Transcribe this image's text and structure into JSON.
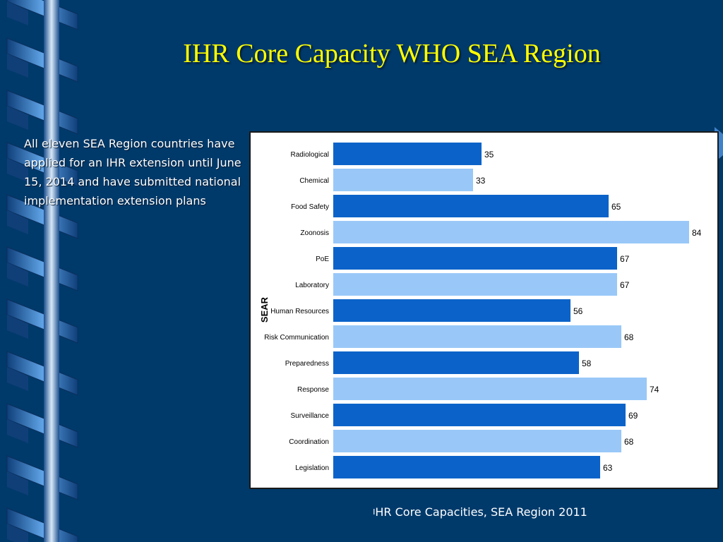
{
  "slide": {
    "title": "IHR Core Capacity WHO SEA Region",
    "body": "All eleven SEA Region countries have applied for an IHR extension until June 15, 2014 and have submitted national implementation extension plans",
    "caption_mark": "I",
    "caption": "HR Core Capacities, SEA Region 2011"
  },
  "colors": {
    "background": "#003a6b",
    "title": "#ffff00",
    "bar_dark": "#0b63c9",
    "bar_light": "#99c8f8"
  },
  "chart_data": {
    "type": "bar",
    "orientation": "horizontal",
    "ylabel": "SEAR",
    "categories": [
      "Radiological",
      "Chemical",
      "Food Safety",
      "Zoonosis",
      "PoE",
      "Laboratory",
      "Human Resources",
      "Risk Communication",
      "Preparedness",
      "Response",
      "Surveillance",
      "Coordination",
      "Legislation"
    ],
    "values": [
      35,
      33,
      65,
      84,
      67,
      67,
      56,
      68,
      58,
      74,
      69,
      68,
      63
    ],
    "data_labels": [
      "35",
      "33",
      "65",
      "84",
      "67",
      "67",
      "56",
      "68",
      "58",
      "74",
      "69",
      "68",
      "63"
    ],
    "bar_colors": [
      "dark",
      "light",
      "dark",
      "light",
      "dark",
      "light",
      "dark",
      "light",
      "dark",
      "light",
      "dark",
      "light",
      "dark"
    ],
    "xlim": [
      0,
      84
    ],
    "grid": false,
    "legend": "none"
  }
}
